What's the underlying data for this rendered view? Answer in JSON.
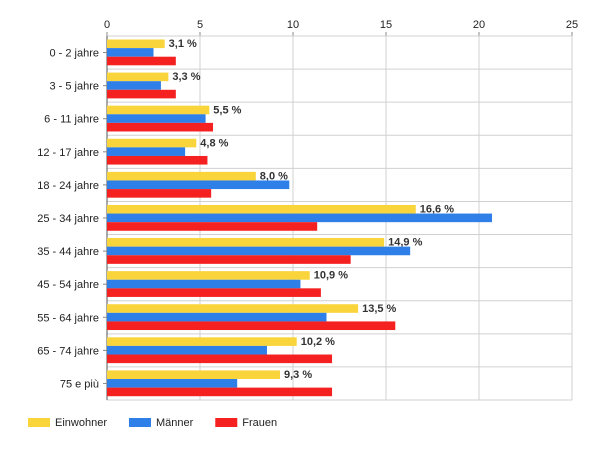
{
  "chart_data": {
    "type": "bar",
    "orientation": "horizontal",
    "categories": [
      "0 - 2 jahre",
      "3 - 5 jahre",
      "6 - 11 jahre",
      "12 - 17 jahre",
      "18 - 24 jahre",
      "25 - 34 jahre",
      "35 - 44 jahre",
      "45 - 54 jahre",
      "55 - 64 jahre",
      "65 - 74 jahre",
      "75 e più"
    ],
    "series": [
      {
        "name": "Einwohner",
        "color": "#f9d43a",
        "values": [
          3.1,
          3.3,
          5.5,
          4.8,
          8.0,
          16.6,
          14.9,
          10.9,
          13.5,
          10.2,
          9.3
        ],
        "labels": [
          "3,1 %",
          "3,3 %",
          "5,5 %",
          "4,8 %",
          "8,0 %",
          "16,6 %",
          "14,9 %",
          "10,9 %",
          "13,5 %",
          "10,2 %",
          "9,3 %"
        ]
      },
      {
        "name": "Männer",
        "color": "#2f7fe8",
        "values": [
          2.5,
          2.9,
          5.3,
          4.2,
          9.8,
          20.7,
          16.3,
          10.4,
          11.8,
          8.6,
          7.0
        ]
      },
      {
        "name": "Frauen",
        "color": "#f52020",
        "values": [
          3.7,
          3.7,
          5.7,
          5.4,
          5.6,
          11.3,
          13.1,
          11.5,
          15.5,
          12.1,
          12.1
        ]
      }
    ],
    "xlim": [
      0,
      25
    ],
    "xticks": [
      0,
      5,
      10,
      15,
      20,
      25
    ],
    "grid": true,
    "legend_position": "bottom-left",
    "title": "",
    "xlabel": "",
    "ylabel": ""
  }
}
